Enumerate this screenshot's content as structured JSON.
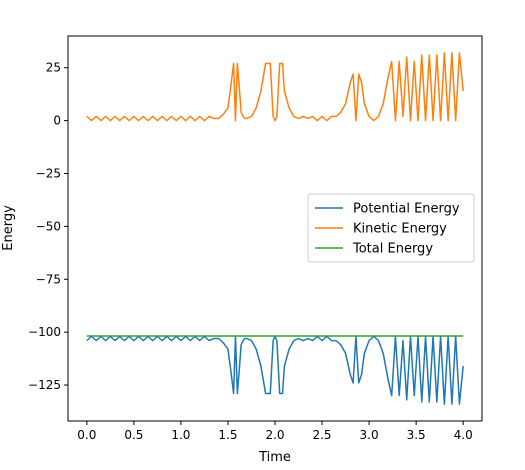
{
  "chart_data": {
    "type": "line",
    "title": "",
    "xlabel": "Time",
    "ylabel": "Energy",
    "xlim": [
      -0.2,
      4.2
    ],
    "ylim": [
      -142,
      40
    ],
    "xticks": [
      0.0,
      0.5,
      1.0,
      1.5,
      2.0,
      2.5,
      3.0,
      3.5,
      4.0
    ],
    "xtick_labels": [
      "0.0",
      "0.5",
      "1.0",
      "1.5",
      "2.0",
      "2.5",
      "3.0",
      "3.5",
      "4.0"
    ],
    "yticks": [
      25,
      0,
      -25,
      -50,
      -75,
      -100,
      -125
    ],
    "ytick_labels": [
      "25",
      "0",
      "−25",
      "−50",
      "−75",
      "−100",
      "−125"
    ],
    "grid": false,
    "legend_position": "center-right",
    "total_energy": -101.8,
    "series": [
      {
        "name": "Potential Energy",
        "color": "#1f77b4",
        "x": [
          0.0,
          0.05,
          0.1,
          0.15,
          0.2,
          0.25,
          0.3,
          0.35,
          0.4,
          0.45,
          0.5,
          0.55,
          0.6,
          0.65,
          0.7,
          0.75,
          0.8,
          0.85,
          0.9,
          0.95,
          1.0,
          1.05,
          1.1,
          1.15,
          1.2,
          1.25,
          1.3,
          1.35,
          1.4,
          1.45,
          1.5,
          1.53,
          1.56,
          1.58,
          1.6,
          1.62,
          1.64,
          1.66,
          1.68,
          1.7,
          1.75,
          1.8,
          1.85,
          1.9,
          1.95,
          1.98,
          2.0,
          2.02,
          2.05,
          2.08,
          2.1,
          2.15,
          2.2,
          2.25,
          2.3,
          2.35,
          2.4,
          2.45,
          2.5,
          2.55,
          2.6,
          2.65,
          2.7,
          2.75,
          2.8,
          2.83,
          2.86,
          2.89,
          2.92,
          2.95,
          3.0,
          3.05,
          3.1,
          3.15,
          3.2,
          3.24,
          3.28,
          3.32,
          3.36,
          3.4,
          3.44,
          3.48,
          3.52,
          3.56,
          3.6,
          3.64,
          3.68,
          3.72,
          3.76,
          3.8,
          3.84,
          3.88,
          3.92,
          3.96,
          4.0
        ],
        "y": [
          -104,
          -102,
          -104,
          -102,
          -104,
          -102,
          -104,
          -102,
          -104,
          -102,
          -104,
          -102,
          -104,
          -102,
          -104,
          -102,
          -104,
          -102,
          -104,
          -102,
          -104,
          -102,
          -104,
          -102,
          -104,
          -102,
          -104,
          -103,
          -103,
          -105,
          -108,
          -118,
          -129,
          -102,
          -129,
          -118,
          -106,
          -104,
          -103,
          -103,
          -104,
          -108,
          -116,
          -129,
          -129,
          -104,
          -102,
          -104,
          -129,
          -129,
          -116,
          -108,
          -104,
          -103,
          -104,
          -103,
          -104,
          -102,
          -104,
          -102,
          -104,
          -104,
          -106,
          -110,
          -120,
          -124,
          -102,
          -124,
          -120,
          -110,
          -104,
          -102,
          -104,
          -110,
          -122,
          -130,
          -102,
          -130,
          -104,
          -132,
          -102,
          -130,
          -102,
          -133,
          -102,
          -133,
          -102,
          -133,
          -102,
          -134,
          -102,
          -134,
          -102,
          -134,
          -116
        ]
      },
      {
        "name": "Kinetic Energy",
        "color": "#ff7f0e",
        "x": [
          0.0,
          0.05,
          0.1,
          0.15,
          0.2,
          0.25,
          0.3,
          0.35,
          0.4,
          0.45,
          0.5,
          0.55,
          0.6,
          0.65,
          0.7,
          0.75,
          0.8,
          0.85,
          0.9,
          0.95,
          1.0,
          1.05,
          1.1,
          1.15,
          1.2,
          1.25,
          1.3,
          1.35,
          1.4,
          1.45,
          1.5,
          1.53,
          1.56,
          1.58,
          1.6,
          1.62,
          1.64,
          1.66,
          1.68,
          1.7,
          1.75,
          1.8,
          1.85,
          1.9,
          1.95,
          1.98,
          2.0,
          2.02,
          2.05,
          2.08,
          2.1,
          2.15,
          2.2,
          2.25,
          2.3,
          2.35,
          2.4,
          2.45,
          2.5,
          2.55,
          2.6,
          2.65,
          2.7,
          2.75,
          2.8,
          2.83,
          2.86,
          2.89,
          2.92,
          2.95,
          3.0,
          3.05,
          3.1,
          3.15,
          3.2,
          3.24,
          3.28,
          3.32,
          3.36,
          3.4,
          3.44,
          3.48,
          3.52,
          3.56,
          3.6,
          3.64,
          3.68,
          3.72,
          3.76,
          3.8,
          3.84,
          3.88,
          3.92,
          3.96,
          4.0
        ],
        "y": [
          2,
          0,
          2,
          0,
          2,
          0,
          2,
          0,
          2,
          0,
          2,
          0,
          2,
          0,
          2,
          0,
          2,
          0,
          2,
          0,
          2,
          0,
          2,
          0,
          2,
          0,
          2,
          1,
          1,
          3,
          6,
          16,
          27,
          0,
          27,
          16,
          4,
          2,
          1,
          1,
          2,
          6,
          14,
          27,
          27,
          2,
          0,
          2,
          27,
          27,
          14,
          6,
          2,
          1,
          2,
          1,
          2,
          0,
          2,
          0,
          2,
          2,
          4,
          8,
          18,
          22,
          0,
          22,
          18,
          8,
          2,
          0,
          2,
          8,
          20,
          28,
          0,
          28,
          2,
          30,
          0,
          28,
          0,
          31,
          0,
          31,
          0,
          31,
          0,
          32,
          0,
          32,
          0,
          32,
          14
        ]
      },
      {
        "name": "Total Energy",
        "color": "#2ca02c",
        "x": [
          0.0,
          4.0
        ],
        "y": [
          -101.8,
          -101.8
        ]
      }
    ]
  }
}
